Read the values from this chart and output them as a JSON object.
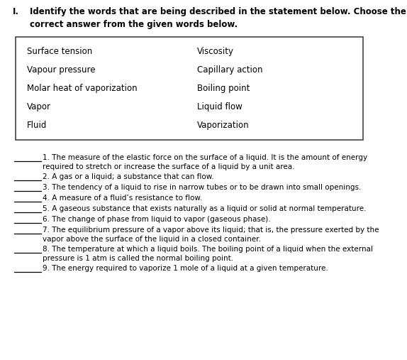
{
  "title_roman": "I.",
  "title_text": "Identify the words that are being described in the statement below. Choose the\ncorrect answer from the given words below.",
  "box_words_left": [
    "Surface tension",
    "Vapour pressure",
    "Molar heat of vaporization",
    "Vapor",
    "Fluid"
  ],
  "box_words_right": [
    "Viscosity",
    "Capillary action",
    "Boiling point",
    "Liquid flow",
    "Vaporization"
  ],
  "items": [
    "1. The measure of the elastic force on the surface of a liquid. It is the amount of energy\nrequired to stretch or increase the surface of a liquid by a unit area.",
    "2. A gas or a liquid; a substance that can flow.",
    "3. The tendency of a liquid to rise in narrow tubes or to be drawn into small openings.",
    "4. A measure of a fluid’s resistance to flow.",
    "5. A gaseous substance that exists naturally as a liquid or solid at normal temperature.",
    "6. The change of phase from liquid to vapor (gaseous phase).",
    "7. The equilibrium pressure of a vapor above its liquid; that is, the pressure exerted by the\nvapor above the surface of the liquid in a closed container.",
    "8. The temperature at which a liquid boils. The boiling point of a liquid when the external\npressure is 1 atm is called the normal boiling point.",
    "9. The energy required to vaporize 1 mole of a liquid at a given temperature."
  ],
  "bg_color": "#ffffff",
  "text_color": "#000000",
  "font_size_title": 8.5,
  "font_size_body": 7.5,
  "font_size_box": 8.5
}
